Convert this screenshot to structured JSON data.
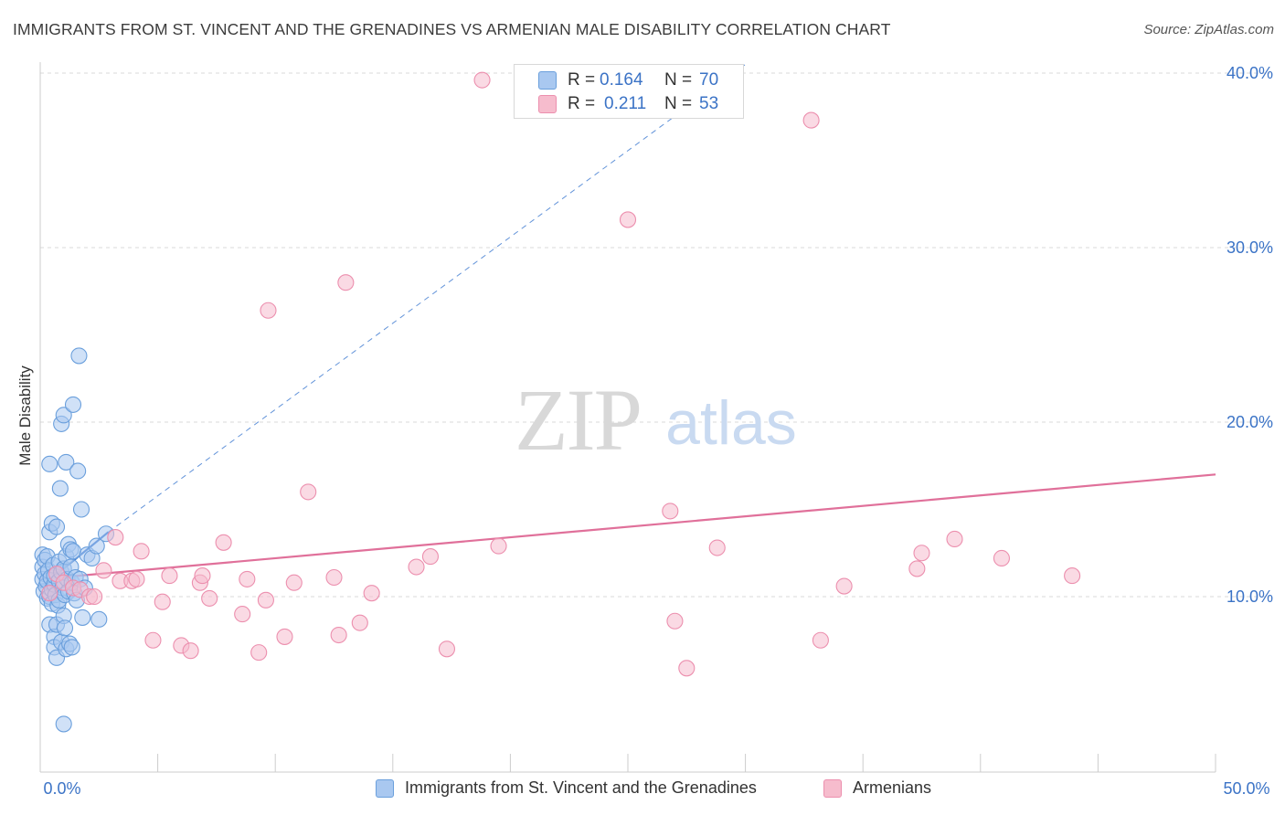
{
  "title": "IMMIGRANTS FROM ST. VINCENT AND THE GRENADINES VS ARMENIAN MALE DISABILITY CORRELATION CHART",
  "source": "Source: ZipAtlas.com",
  "watermark": {
    "zip": "ZIP",
    "atlas": "atlas"
  },
  "colors": {
    "blue_fill": "#a9c8f0",
    "blue_stroke": "#6a9fdc",
    "blue_line": "#3b78d0",
    "pink_fill": "#f6bccd",
    "pink_stroke": "#ec8fae",
    "pink_line": "#e0709a",
    "tick_label": "#3b73c6",
    "grid": "#d9d9d9"
  },
  "stats": [
    {
      "r_label": "R =",
      "r_value": "0.164",
      "n_label": "N =",
      "n_value": "70",
      "color": "blue"
    },
    {
      "r_label": "R =",
      "r_value": "0.211",
      "n_label": "N =",
      "n_value": "53",
      "color": "pink"
    }
  ],
  "legend": [
    {
      "label": "Immigrants from St. Vincent and the Grenadines",
      "color": "blue"
    },
    {
      "label": "Armenians",
      "color": "pink"
    }
  ],
  "chart_data": {
    "type": "scatter",
    "title": "IMMIGRANTS FROM ST. VINCENT AND THE GRENADINES VS ARMENIAN MALE DISABILITY CORRELATION CHART",
    "xlabel": "",
    "ylabel": "Male Disability",
    "xlim": [
      0,
      50
    ],
    "ylim": [
      0,
      40
    ],
    "x_tick_labels": [
      {
        "value": 0,
        "label": "0.0%"
      },
      {
        "value": 50,
        "label": "50.0%"
      }
    ],
    "y_tick_labels": [
      {
        "value": 10,
        "label": "10.0%"
      },
      {
        "value": 20,
        "label": "20.0%"
      },
      {
        "value": 30,
        "label": "30.0%"
      },
      {
        "value": 40,
        "label": "40.0%"
      }
    ],
    "grid": "horizontal dashed",
    "legend_position": "bottom",
    "series": [
      {
        "name": "Immigrants from St. Vincent and the Grenadines",
        "color": "blue",
        "trend": {
          "x": [
            0,
            2.9
          ],
          "y": [
            10.5,
            13.7
          ],
          "dashed_extension_to": [
            30,
            40.5
          ]
        },
        "points": [
          [
            0.1,
            12.4
          ],
          [
            0.1,
            11.7
          ],
          [
            0.1,
            11.0
          ],
          [
            0.15,
            10.3
          ],
          [
            0.2,
            12.1
          ],
          [
            0.2,
            11.3
          ],
          [
            0.25,
            10.6
          ],
          [
            0.3,
            9.9
          ],
          [
            0.3,
            12.3
          ],
          [
            0.3,
            10.9
          ],
          [
            0.35,
            11.5
          ],
          [
            0.4,
            10.0
          ],
          [
            0.4,
            13.7
          ],
          [
            0.4,
            17.6
          ],
          [
            0.4,
            8.4
          ],
          [
            0.45,
            11.1
          ],
          [
            0.5,
            14.2
          ],
          [
            0.5,
            10.4
          ],
          [
            0.5,
            9.6
          ],
          [
            0.55,
            11.8
          ],
          [
            0.6,
            10.7
          ],
          [
            0.6,
            7.7
          ],
          [
            0.6,
            7.1
          ],
          [
            0.6,
            11.2
          ],
          [
            0.65,
            10.1
          ],
          [
            0.7,
            14.0
          ],
          [
            0.7,
            8.4
          ],
          [
            0.7,
            6.5
          ],
          [
            0.75,
            9.5
          ],
          [
            0.8,
            10.9
          ],
          [
            0.8,
            12.0
          ],
          [
            0.8,
            9.8
          ],
          [
            0.85,
            16.2
          ],
          [
            0.9,
            19.9
          ],
          [
            0.9,
            11.4
          ],
          [
            0.9,
            7.4
          ],
          [
            0.95,
            10.5
          ],
          [
            1.0,
            20.4
          ],
          [
            1.0,
            11.6
          ],
          [
            1.0,
            8.9
          ],
          [
            1.0,
            2.7
          ],
          [
            1.05,
            10.1
          ],
          [
            1.05,
            8.2
          ],
          [
            1.1,
            17.7
          ],
          [
            1.1,
            12.3
          ],
          [
            1.1,
            7.0
          ],
          [
            1.15,
            11.0
          ],
          [
            1.2,
            13.0
          ],
          [
            1.2,
            10.3
          ],
          [
            1.25,
            7.3
          ],
          [
            1.3,
            12.7
          ],
          [
            1.3,
            11.7
          ],
          [
            1.35,
            10.8
          ],
          [
            1.35,
            7.1
          ],
          [
            1.4,
            21.0
          ],
          [
            1.4,
            12.6
          ],
          [
            1.45,
            10.2
          ],
          [
            1.5,
            11.1
          ],
          [
            1.55,
            9.8
          ],
          [
            1.6,
            17.2
          ],
          [
            1.65,
            23.8
          ],
          [
            1.7,
            11.0
          ],
          [
            1.75,
            15.0
          ],
          [
            1.8,
            8.8
          ],
          [
            1.9,
            10.5
          ],
          [
            2.0,
            12.4
          ],
          [
            2.2,
            12.2
          ],
          [
            2.4,
            12.9
          ],
          [
            2.5,
            8.7
          ],
          [
            2.8,
            13.6
          ]
        ]
      },
      {
        "name": "Armenians",
        "color": "pink",
        "trend": {
          "x": [
            0,
            50
          ],
          "y": [
            11.0,
            17.0
          ]
        },
        "points": [
          [
            0.4,
            10.2
          ],
          [
            0.7,
            11.3
          ],
          [
            1.0,
            10.8
          ],
          [
            1.4,
            10.5
          ],
          [
            1.7,
            10.4
          ],
          [
            2.1,
            10.0
          ],
          [
            2.3,
            10.0
          ],
          [
            2.7,
            11.5
          ],
          [
            3.2,
            13.4
          ],
          [
            3.4,
            10.9
          ],
          [
            3.9,
            10.9
          ],
          [
            4.1,
            11.0
          ],
          [
            4.3,
            12.6
          ],
          [
            4.8,
            7.5
          ],
          [
            5.2,
            9.7
          ],
          [
            5.5,
            11.2
          ],
          [
            6.0,
            7.2
          ],
          [
            6.4,
            6.9
          ],
          [
            6.8,
            10.8
          ],
          [
            6.9,
            11.2
          ],
          [
            7.2,
            9.9
          ],
          [
            7.8,
            13.1
          ],
          [
            8.6,
            9.0
          ],
          [
            8.8,
            11.0
          ],
          [
            9.3,
            6.8
          ],
          [
            9.6,
            9.8
          ],
          [
            9.7,
            26.4
          ],
          [
            10.4,
            7.7
          ],
          [
            10.8,
            10.8
          ],
          [
            11.4,
            16.0
          ],
          [
            12.5,
            11.1
          ],
          [
            12.7,
            7.8
          ],
          [
            13.0,
            28.0
          ],
          [
            13.6,
            8.5
          ],
          [
            14.1,
            10.2
          ],
          [
            16.0,
            11.7
          ],
          [
            16.6,
            12.3
          ],
          [
            17.3,
            7.0
          ],
          [
            18.8,
            39.6
          ],
          [
            19.5,
            12.9
          ],
          [
            25.0,
            31.6
          ],
          [
            26.8,
            14.9
          ],
          [
            27.0,
            8.6
          ],
          [
            27.5,
            5.9
          ],
          [
            28.8,
            12.8
          ],
          [
            32.8,
            37.3
          ],
          [
            33.2,
            7.5
          ],
          [
            34.2,
            10.6
          ],
          [
            37.3,
            11.6
          ],
          [
            37.5,
            12.5
          ],
          [
            38.9,
            13.3
          ],
          [
            40.9,
            12.2
          ],
          [
            43.9,
            11.2
          ]
        ]
      }
    ]
  }
}
